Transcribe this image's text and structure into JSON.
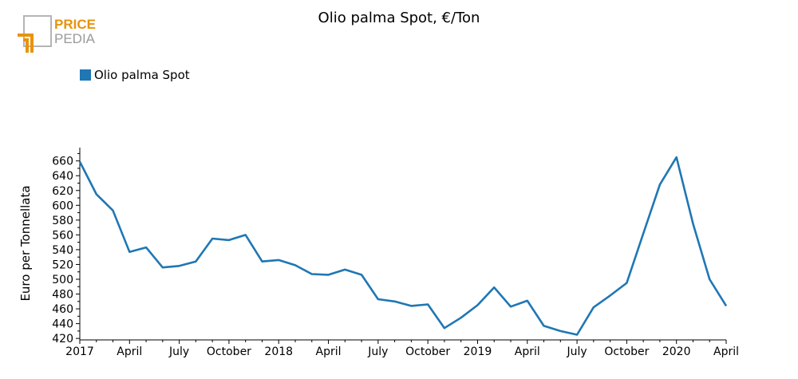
{
  "logo": {
    "line1": "PRICE",
    "line2": "PEDIA",
    "accent": "#e8930c",
    "gray": "#9a9a9a"
  },
  "chart_data": {
    "type": "line",
    "title": "Olio palma Spot, €/Ton",
    "ylabel": "Euro per Tonnellata",
    "xlabel": "",
    "ylim": [
      418,
      678
    ],
    "y_ticks": [
      420,
      440,
      460,
      480,
      500,
      520,
      540,
      560,
      580,
      600,
      620,
      640,
      660
    ],
    "x_tick_labels": [
      "2017",
      "April",
      "July",
      "October",
      "2018",
      "April",
      "July",
      "October",
      "2019",
      "April",
      "July",
      "October",
      "2020",
      "April"
    ],
    "legend_position": "top-left",
    "grid": false,
    "series": [
      {
        "name": "Olio palma Spot",
        "color": "#1f77b4",
        "values": [
          659,
          615,
          593,
          537,
          543,
          516,
          518,
          524,
          555,
          553,
          560,
          524,
          526,
          519,
          507,
          506,
          513,
          506,
          473,
          470,
          464,
          466,
          434,
          448,
          465,
          489,
          463,
          471,
          437,
          430,
          425,
          462,
          478,
          495,
          562,
          628,
          665,
          575,
          500,
          464
        ]
      }
    ]
  }
}
